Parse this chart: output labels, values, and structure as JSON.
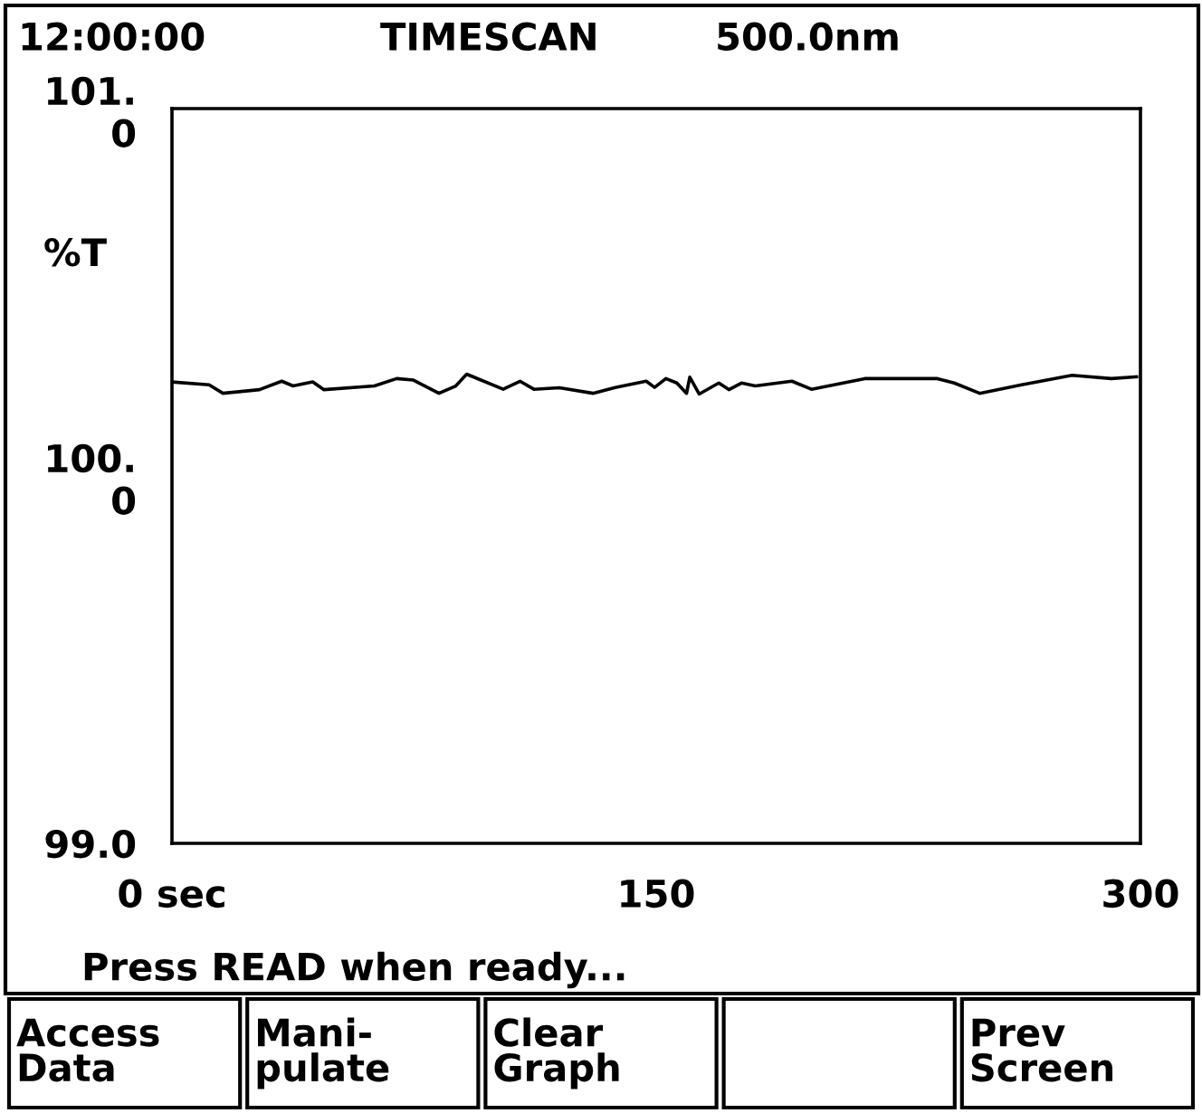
{
  "chart_data": {
    "type": "line",
    "title": "TIMESCAN",
    "subtitle": "500.0nm",
    "ylabel": "%T",
    "annotations": [
      "12:00:00",
      "Press READ when ready...",
      "Access\nData",
      "Mani-\npulate",
      "Clear\nGraph",
      "Prev\nScreen"
    ],
    "x": [
      0,
      11.5,
      15.8,
      27.1,
      34.0,
      37.5,
      43.6,
      47.0,
      62.7,
      69.6,
      74.8,
      82.7,
      87.9,
      91.3,
      102.6,
      107.8,
      112.1,
      120,
      130.4,
      137.3,
      146.9,
      149.5,
      153,
      156.4,
      159.4,
      160.4,
      163.3,
      169.4,
      172.5,
      176.4,
      180.7,
      192,
      198.1,
      214.6,
      237.1,
      242.3,
      250.2,
      263.2,
      278.8,
      291,
      298.8
    ],
    "series": [
      {
        "color": "#000000",
        "values": [
          100.256,
          100.248,
          100.225,
          100.235,
          100.258,
          100.245,
          100.256,
          100.235,
          100.245,
          100.265,
          100.261,
          100.225,
          100.245,
          100.277,
          100.236,
          100.258,
          100.236,
          100.24,
          100.225,
          100.241,
          100.258,
          100.241,
          100.265,
          100.253,
          100.225,
          100.269,
          100.223,
          100.253,
          100.235,
          100.253,
          100.245,
          100.258,
          100.236,
          100.265,
          100.265,
          100.253,
          100.225,
          100.248,
          100.274,
          100.265,
          100.27
        ]
      }
    ],
    "xlim": [
      0,
      300
    ],
    "xticks": [
      {
        "value": 0,
        "label": "0 sec"
      },
      150,
      300
    ],
    "ylim": [
      99,
      101
    ],
    "yticks": [
      {
        "value": 99,
        "label": "99.0"
      },
      {
        "value": 100,
        "label": "100.0"
      },
      {
        "value": 101,
        "label": "101.0"
      }
    ],
    "grid": false,
    "legend": false,
    "marker": "none",
    "line_style": "solid"
  }
}
